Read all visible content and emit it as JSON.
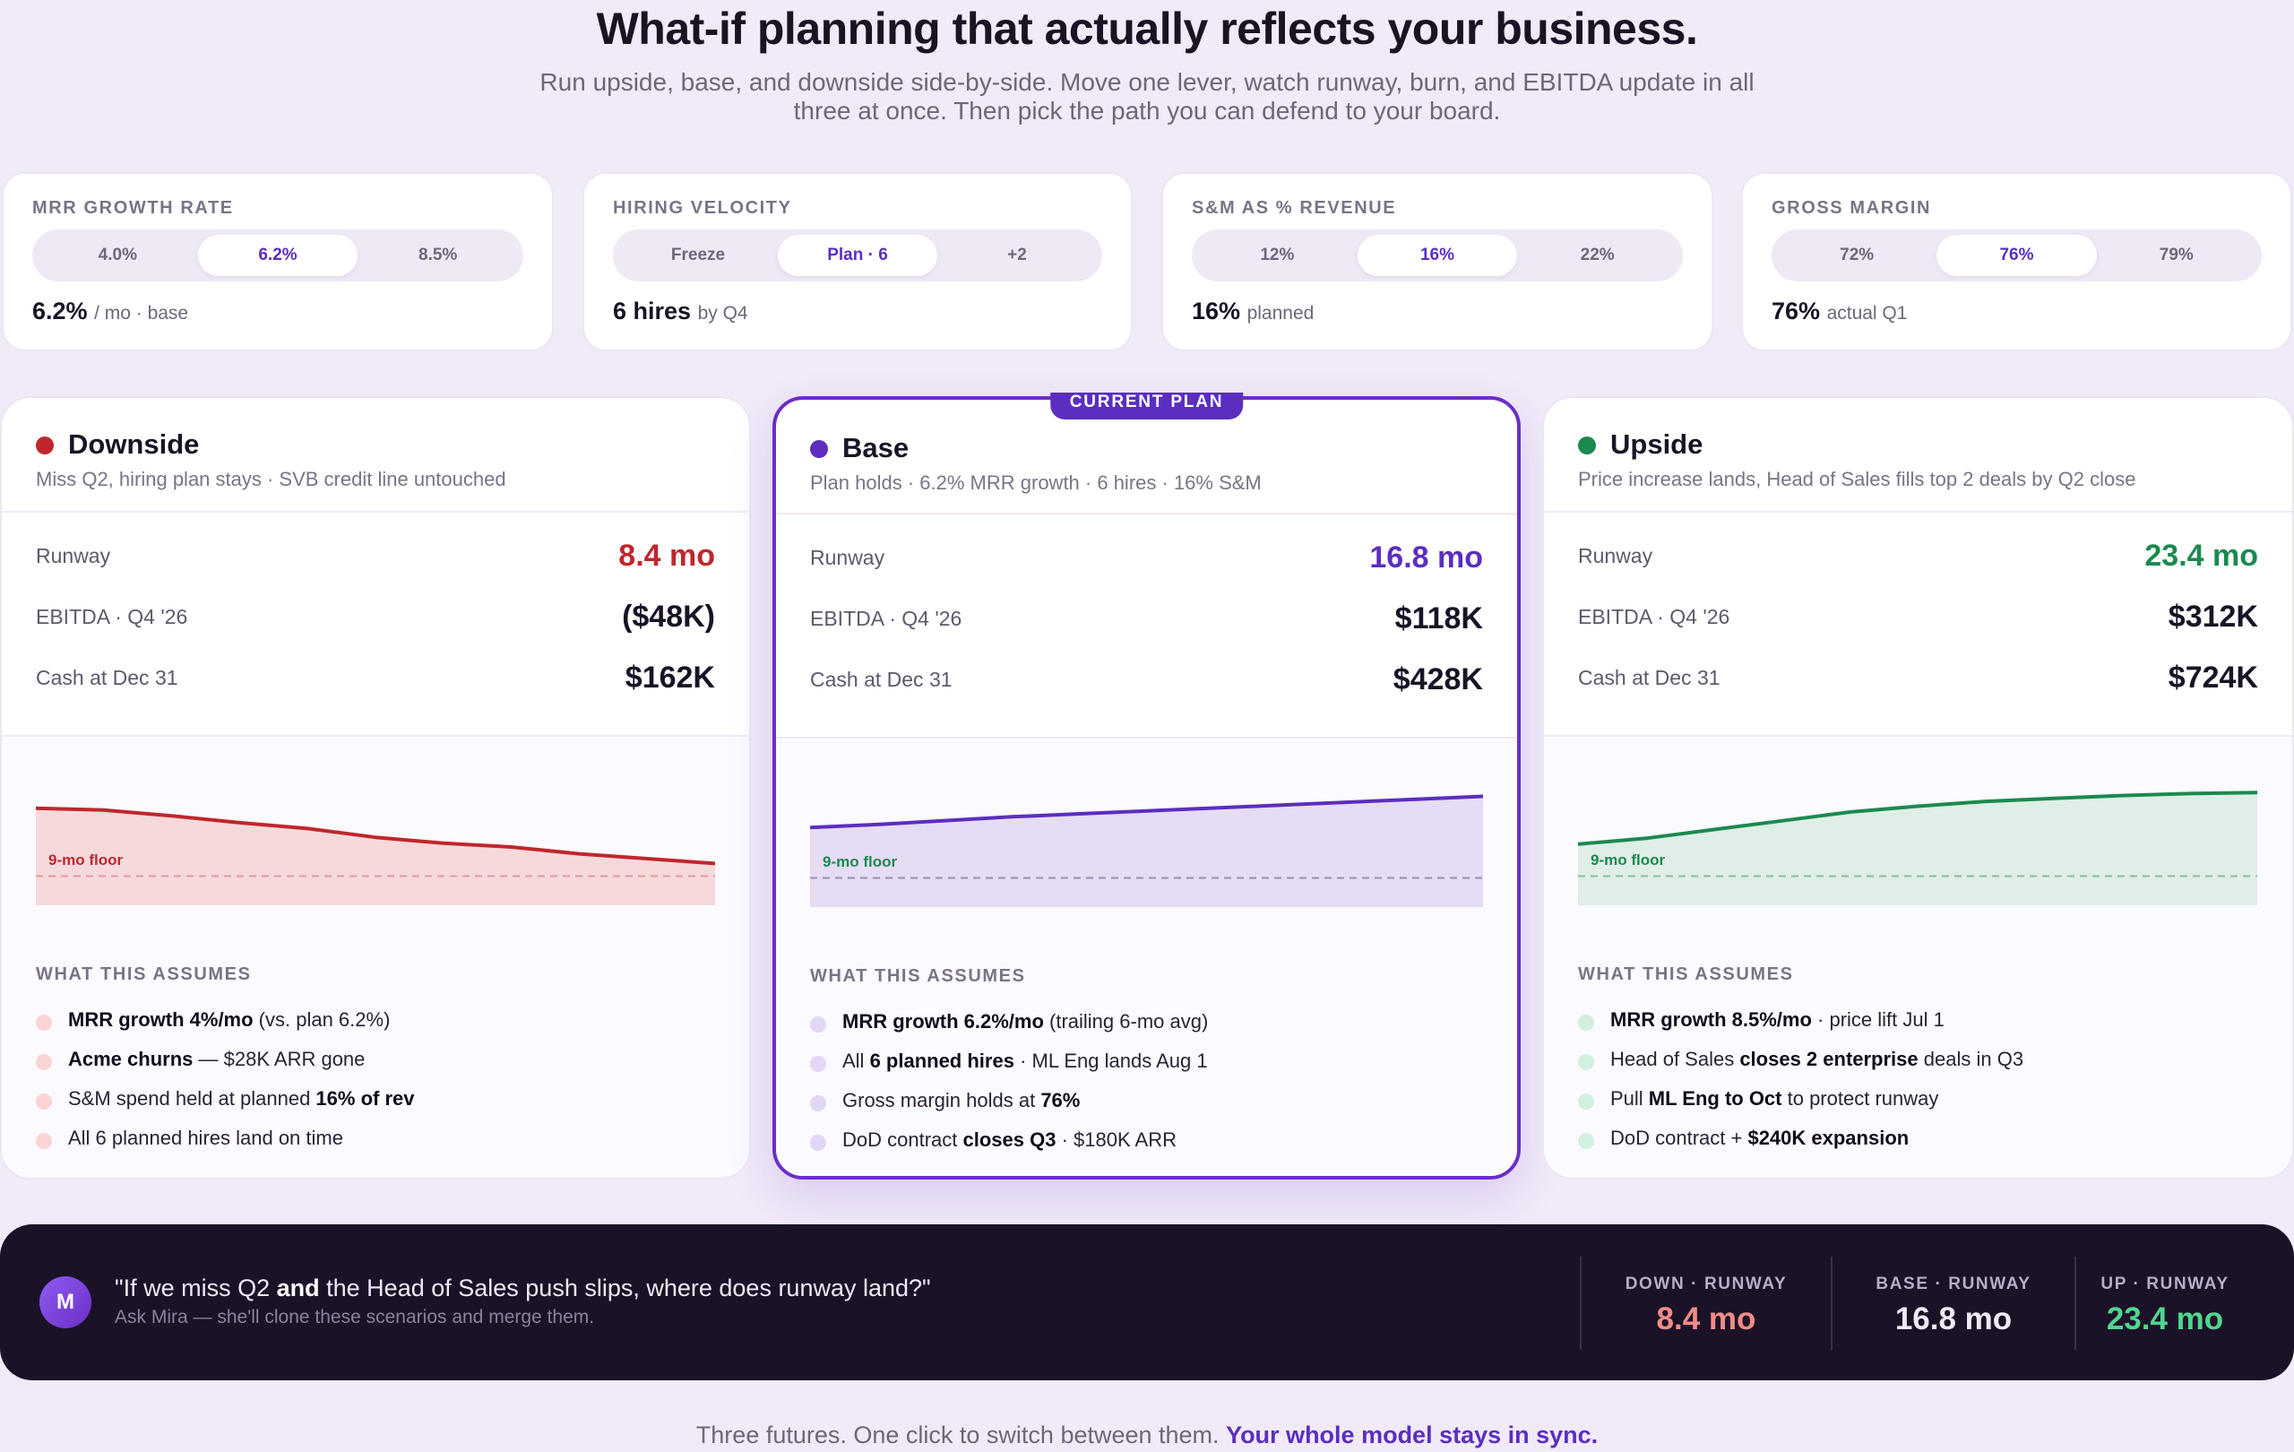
{
  "hero": {
    "title": "What-if planning that actually reflects your business.",
    "subtitle": "Run upside, base, and downside side-by-side. Move one lever, watch runway, burn, and EBITDA update in all three at once. Then pick the path you can defend to your board."
  },
  "levers": [
    {
      "label": "MRR GROWTH RATE",
      "options": [
        "4.0%",
        "6.2%",
        "8.5%"
      ],
      "selected": 1,
      "value": "6.2%",
      "note": "/ mo · base"
    },
    {
      "label": "HIRING VELOCITY",
      "options": [
        "Freeze",
        "Plan · 6",
        "+2"
      ],
      "selected": 1,
      "value": "6 hires",
      "note": "by Q4"
    },
    {
      "label": "S&M AS % REVENUE",
      "options": [
        "12%",
        "16%",
        "22%"
      ],
      "selected": 1,
      "value": "16%",
      "note": "planned"
    },
    {
      "label": "GROSS MARGIN",
      "options": [
        "72%",
        "76%",
        "79%"
      ],
      "selected": 1,
      "value": "76%",
      "note": "actual Q1"
    }
  ],
  "scenarios": {
    "downside": {
      "name": "Downside",
      "color": "#c0262d",
      "description": "Miss Q2, hiring plan stays · SVB credit line untouched",
      "metrics": [
        {
          "label": "Runway",
          "value": "8.4 mo"
        },
        {
          "label": "EBITDA · Q4 '26",
          "value": "($48K)"
        },
        {
          "label": "Cash at Dec 31",
          "value": "$162K"
        }
      ],
      "floor_label": "9-mo floor",
      "assumes_title": "WHAT THIS ASSUMES",
      "assumes": [
        {
          "strong": "MRR growth 4%/mo",
          "rest": " (vs. plan 6.2%)"
        },
        {
          "strong": "Acme churns",
          "rest": " — $28K ARR gone"
        },
        {
          "pre": "S&M spend held at planned ",
          "strong": "16% of rev"
        },
        {
          "pre": "All 6 planned hires land on time"
        }
      ]
    },
    "base": {
      "badge": "CURRENT PLAN",
      "name": "Base",
      "color": "#5b2ec0",
      "description": "Plan holds · 6.2% MRR growth · 6 hires · 16% S&M",
      "metrics": [
        {
          "label": "Runway",
          "value": "16.8 mo"
        },
        {
          "label": "EBITDA · Q4 '26",
          "value": "$118K"
        },
        {
          "label": "Cash at Dec 31",
          "value": "$428K"
        }
      ],
      "floor_label": "9-mo floor",
      "assumes_title": "WHAT THIS ASSUMES",
      "assumes": [
        {
          "strong": "MRR growth 6.2%/mo",
          "rest": " (trailing 6-mo avg)"
        },
        {
          "pre": "All ",
          "strong": "6 planned hires",
          "rest": " · ML Eng lands Aug 1"
        },
        {
          "pre": "Gross margin holds at ",
          "strong": "76%"
        },
        {
          "pre": "DoD contract ",
          "strong": "closes Q3",
          "rest": " · $180K ARR"
        }
      ]
    },
    "upside": {
      "name": "Upside",
      "color": "#1b8a4f",
      "description": "Price increase lands, Head of Sales fills top 2 deals by Q2 close",
      "metrics": [
        {
          "label": "Runway",
          "value": "23.4 mo"
        },
        {
          "label": "EBITDA · Q4 '26",
          "value": "$312K"
        },
        {
          "label": "Cash at Dec 31",
          "value": "$724K"
        }
      ],
      "floor_label": "9-mo floor",
      "assumes_title": "WHAT THIS ASSUMES",
      "assumes": [
        {
          "strong": "MRR growth 8.5%/mo",
          "rest": " · price lift Jul 1"
        },
        {
          "pre": "Head of Sales ",
          "strong": "closes 2 enterprise",
          "rest": " deals in Q3"
        },
        {
          "pre": "Pull ",
          "strong": "ML Eng to Oct",
          "rest": " to protect runway"
        },
        {
          "pre": "DoD contract + ",
          "strong": "$240K expansion"
        }
      ]
    }
  },
  "mira": {
    "avatar": "M",
    "question_pre": "\"If we miss Q2 ",
    "question_strong": "and",
    "question_post": " the Head of Sales push slips, where does runway land?\"",
    "subtitle": "Ask Mira — she'll clone these scenarios and merge them.",
    "stats": [
      {
        "label": "DOWN · RUNWAY",
        "value": "8.4 mo",
        "color": "#f28c86"
      },
      {
        "label": "BASE · RUNWAY",
        "value": "16.8 mo",
        "color": "#efeaf6"
      },
      {
        "label": "UP · RUNWAY",
        "value": "23.4 mo",
        "color": "#4fd68e"
      }
    ]
  },
  "footer": {
    "text": "Three futures. One click to switch between them. ",
    "strong": "Your whole model stays in sync."
  },
  "chart_data": [
    {
      "type": "area",
      "series": [
        {
          "name": "Downside",
          "values": [
            100,
            98,
            92,
            85,
            79,
            70,
            64,
            60,
            53,
            48,
            43
          ]
        }
      ],
      "ylim": [
        0,
        120
      ],
      "floor": 30
    },
    {
      "type": "area",
      "series": [
        {
          "name": "Base",
          "values": [
            82,
            85,
            89,
            93,
            96,
            99,
            102,
            105,
            108,
            111,
            114
          ]
        }
      ],
      "ylim": [
        0,
        120
      ],
      "floor": 30
    },
    {
      "type": "area",
      "series": [
        {
          "name": "Upside",
          "values": [
            63,
            69,
            78,
            87,
            96,
            102,
            107,
            110,
            113,
            115,
            116
          ]
        }
      ],
      "ylim": [
        0,
        120
      ],
      "floor": 30
    }
  ]
}
